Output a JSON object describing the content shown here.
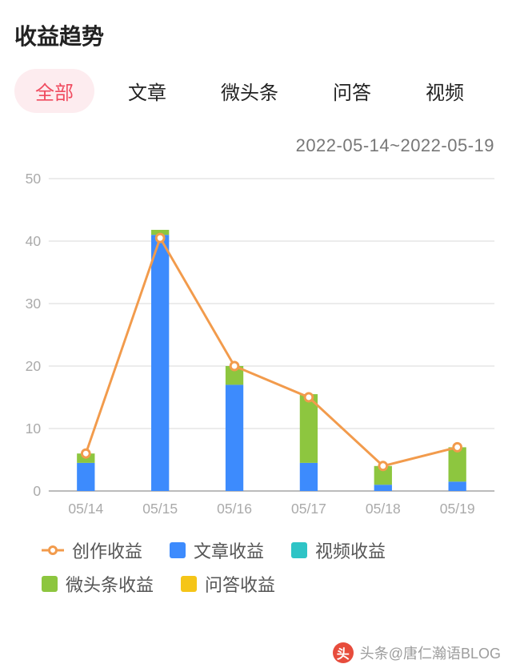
{
  "title": "收益趋势",
  "tabs": {
    "items": [
      "全部",
      "文章",
      "微头条",
      "问答",
      "视频"
    ],
    "active_index": 0,
    "active_bg": "#fdecef",
    "active_color": "#f04b5f",
    "fontsize": 24
  },
  "date_range": "2022-05-14~2022-05-19",
  "chart": {
    "type": "stacked-bar-with-line",
    "categories": [
      "05/14",
      "05/15",
      "05/16",
      "05/17",
      "05/18",
      "05/19"
    ],
    "ylim": [
      0,
      50
    ],
    "ytick_step": 10,
    "yticks": [
      0,
      10,
      20,
      30,
      40,
      50
    ],
    "grid_color": "#ececec",
    "axis_color": "#bbbbbb",
    "background_color": "#ffffff",
    "bar_width": 0.24,
    "label_fontsize": 18,
    "label_color": "#aaaaaa",
    "series": {
      "article": {
        "label": "文章收益",
        "color": "#3d8bfd",
        "values": [
          4.5,
          41.0,
          17.0,
          4.5,
          1.0,
          1.5
        ]
      },
      "weitoutiao": {
        "label": "微头条收益",
        "color": "#8dc63f",
        "values": [
          1.5,
          0.8,
          3.0,
          11.0,
          3.0,
          5.5
        ]
      },
      "video": {
        "label": "视频收益",
        "color": "#2ec4c6",
        "values": [
          0,
          0,
          0,
          0,
          0,
          0
        ]
      },
      "qa": {
        "label": "问答收益",
        "color": "#f5c518",
        "values": [
          0,
          0,
          0,
          0,
          0,
          0
        ]
      }
    },
    "stack_order": [
      "article",
      "weitoutiao",
      "video",
      "qa"
    ],
    "line": {
      "label": "创作收益",
      "color": "#f29b4c",
      "marker_fill": "#ffffff",
      "marker_border": "#f29b4c",
      "marker_radius": 5,
      "line_width": 3,
      "values": [
        6.0,
        40.5,
        20.0,
        15.0,
        4.0,
        7.0
      ]
    }
  },
  "legend": {
    "fontsize": 22,
    "items": [
      {
        "key": "line",
        "label": "创作收益"
      },
      {
        "key": "article",
        "label": "文章收益"
      },
      {
        "key": "video",
        "label": "视频收益"
      },
      {
        "key": "weitoutiao",
        "label": "微头条收益"
      },
      {
        "key": "qa",
        "label": "问答收益"
      }
    ]
  },
  "footer": {
    "logo_text": "头",
    "logo_bg": "#e74c3c",
    "text": "头条@唐仁瀚语BLOG"
  }
}
